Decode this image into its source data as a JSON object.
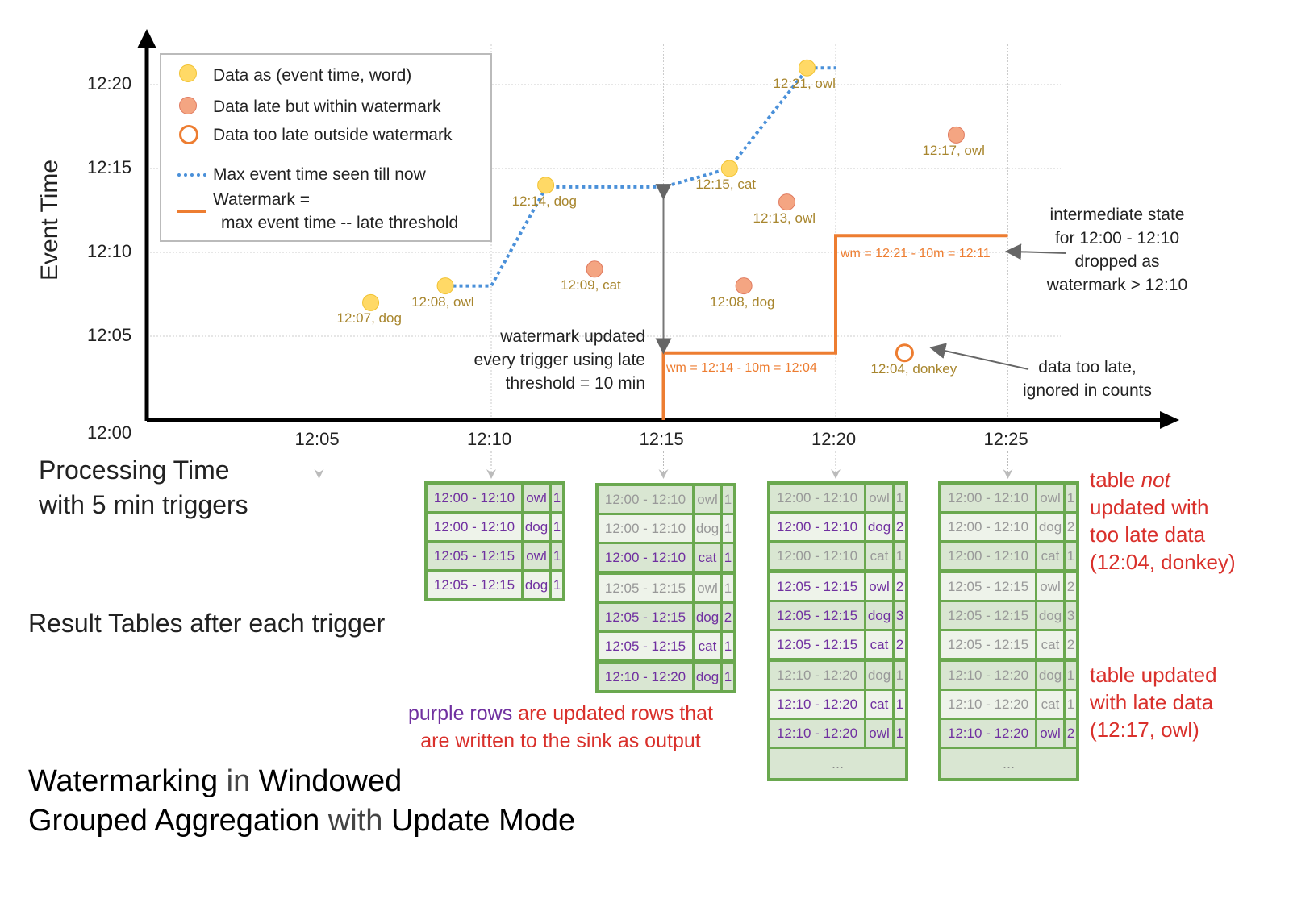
{
  "axes": {
    "y_label": "Event Time",
    "x_label_line1": "Processing Time",
    "x_label_line2": "with 5 min triggers",
    "y_ticks": [
      "12:00",
      "12:05",
      "12:10",
      "12:15",
      "12:20"
    ],
    "x_ticks": [
      "12:05",
      "12:10",
      "12:15",
      "12:20",
      "12:25"
    ]
  },
  "legend": {
    "data": "Data as (event time, word)",
    "late": "Data late but within watermark",
    "too_late": "Data too late outside watermark",
    "max": "Max event time seen till now",
    "wm1": "Watermark =",
    "wm2": "max event time -- late threshold"
  },
  "colors": {
    "on_time": "#ffd966",
    "late": "#f4a582",
    "too_late": "#ed7d31",
    "max_line": "#4a90d9",
    "watermark": "#ed7d31",
    "updated_row": "#7030a0",
    "table_border": "#6aa84f",
    "annotation_red": "#d9302b"
  },
  "points": [
    {
      "label": "12:07, dog",
      "event_time": "12:07",
      "processing_time": "12:06:30",
      "kind": "on_time"
    },
    {
      "label": "12:08, owl",
      "event_time": "12:08",
      "processing_time": "12:08:40",
      "kind": "on_time"
    },
    {
      "label": "12:14, dog",
      "event_time": "12:14",
      "processing_time": "12:11:35",
      "kind": "on_time"
    },
    {
      "label": "12:09, cat",
      "event_time": "12:09",
      "processing_time": "12:13:00",
      "kind": "late"
    },
    {
      "label": "12:15, cat",
      "event_time": "12:15",
      "processing_time": "12:16:55",
      "kind": "on_time"
    },
    {
      "label": "12:08, dog",
      "event_time": "12:08",
      "processing_time": "12:17:20",
      "kind": "late"
    },
    {
      "label": "12:13, owl",
      "event_time": "12:13",
      "processing_time": "12:18:35",
      "kind": "late"
    },
    {
      "label": "12:21, owl",
      "event_time": "12:21",
      "processing_time": "12:19:10",
      "kind": "on_time"
    },
    {
      "label": "12:17, owl",
      "event_time": "12:17",
      "processing_time": "12:23:30",
      "kind": "late"
    },
    {
      "label": "12:04, donkey",
      "event_time": "12:04",
      "processing_time": "12:22:00",
      "kind": "too_late"
    }
  ],
  "annotations": {
    "wm1": "wm = 12:14 - 10m = 12:04",
    "wm2": "wm = 12:21 - 10m = 12:11",
    "updated": [
      "watermark updated",
      "every trigger using late",
      "threshold = 10 min"
    ],
    "dropped": [
      "intermediate state",
      "for 12:00 - 12:10",
      "dropped as",
      "watermark > 12:10"
    ],
    "ignored": [
      "data too late,",
      "ignored in counts"
    ]
  },
  "result_label": "Result Tables after each trigger",
  "tables": [
    {
      "rows": [
        [
          "12:00 - 12:10",
          "owl",
          "1",
          1
        ],
        [
          "12:00 - 12:10",
          "dog",
          "1",
          1
        ],
        [
          "12:05 - 12:15",
          "owl",
          "1",
          1
        ],
        [
          "12:05 - 12:15",
          "dog",
          "1",
          1
        ]
      ]
    },
    {
      "rows": [
        [
          "12:00 - 12:10",
          "owl",
          "1",
          0
        ],
        [
          "12:00 - 12:10",
          "dog",
          "1",
          0
        ],
        [
          "12:00 - 12:10",
          "cat",
          "1",
          1
        ],
        [
          "12:05 - 12:15",
          "owl",
          "1",
          0
        ],
        [
          "12:05 - 12:15",
          "dog",
          "2",
          1
        ],
        [
          "12:05 - 12:15",
          "cat",
          "1",
          1
        ],
        [
          "12:10 - 12:20",
          "dog",
          "1",
          1
        ]
      ]
    },
    {
      "rows": [
        [
          "12:00 - 12:10",
          "owl",
          "1",
          0
        ],
        [
          "12:00 - 12:10",
          "dog",
          "2",
          1
        ],
        [
          "12:00 - 12:10",
          "cat",
          "1",
          0
        ],
        [
          "12:05 - 12:15",
          "owl",
          "2",
          1
        ],
        [
          "12:05 - 12:15",
          "dog",
          "3",
          1
        ],
        [
          "12:05 - 12:15",
          "cat",
          "2",
          1
        ],
        [
          "12:10 - 12:20",
          "dog",
          "1",
          0
        ],
        [
          "12:10 - 12:20",
          "cat",
          "1",
          1
        ],
        [
          "12:10 - 12:20",
          "owl",
          "1",
          1
        ]
      ],
      "more": "..."
    },
    {
      "rows": [
        [
          "12:00 - 12:10",
          "owl",
          "1",
          0
        ],
        [
          "12:00 - 12:10",
          "dog",
          "2",
          0
        ],
        [
          "12:00 - 12:10",
          "cat",
          "1",
          0
        ],
        [
          "12:05 - 12:15",
          "owl",
          "2",
          0
        ],
        [
          "12:05 - 12:15",
          "dog",
          "3",
          0
        ],
        [
          "12:05 - 12:15",
          "cat",
          "2",
          0
        ],
        [
          "12:10 - 12:20",
          "dog",
          "1",
          0
        ],
        [
          "12:10 - 12:20",
          "cat",
          "1",
          0
        ],
        [
          "12:10 - 12:20",
          "owl",
          "2",
          1
        ]
      ],
      "more": "..."
    }
  ],
  "notes": {
    "purple": "purple rows",
    "rest1": " are updated rows that",
    "rest2": "are written to the sink as output",
    "not1": "table ",
    "not_em": "not",
    "not2": "updated with",
    "not3": "too late data",
    "not4": "(12:04, donkey)",
    "upd1": "table updated",
    "upd2": "with late data",
    "upd3": "(12:17, owl)"
  },
  "title": {
    "a": "Watermarking",
    "b": " in ",
    "c": "Windowed",
    "d": "Grouped Aggregation",
    "e": " with ",
    "f": "Update Mode"
  }
}
